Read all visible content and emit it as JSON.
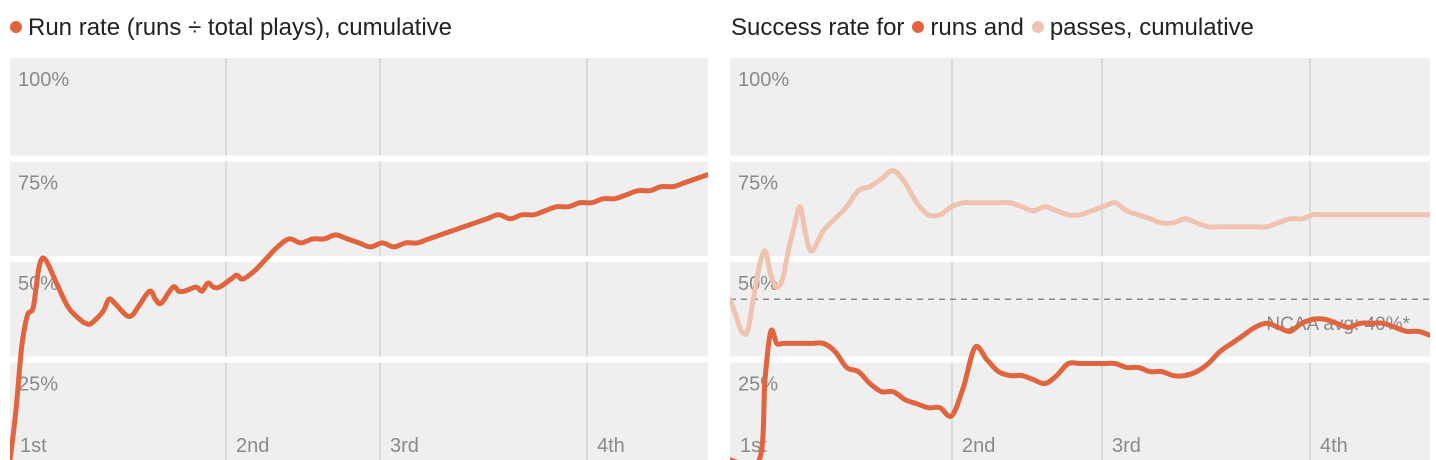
{
  "colors": {
    "runs": "#e0643d",
    "passes": "#f0c2b0",
    "plot_bg": "#efefef",
    "grid_v": "#d3d3d3",
    "band_gap": "#ffffff",
    "tick_text": "#8a8a8a",
    "avg_line": "#8a8a8a"
  },
  "chart_data": [
    {
      "type": "line",
      "title": "Run rate (runs ÷ total plays), cumulative",
      "xlabel": "",
      "ylabel": "",
      "x_tick_labels": [
        "1st",
        "2nd",
        "3rd",
        "4th"
      ],
      "y_tick_labels": [
        "100%",
        "75%",
        "50%",
        "25%"
      ],
      "y_ticks": [
        100,
        75,
        50,
        25
      ],
      "xlim": [
        0,
        60
      ],
      "ylim": [
        0,
        100
      ],
      "grid": true,
      "series": [
        {
          "key": "runs",
          "x": [
            0,
            0.5,
            1,
            1.5,
            2,
            2.5,
            3,
            4,
            5,
            6,
            6.5,
            7,
            8,
            8.5,
            9,
            10,
            10.5,
            11,
            12,
            12.5,
            13,
            14,
            14.5,
            15,
            16,
            16.5,
            17,
            17.5,
            18,
            19,
            19.5,
            20,
            21,
            22,
            23,
            24,
            25,
            26,
            27,
            28,
            29,
            30,
            31,
            32,
            33,
            34,
            35,
            36,
            37,
            38,
            39,
            40,
            41,
            42,
            43,
            44,
            45,
            46,
            47,
            48,
            49,
            50,
            51,
            52,
            53,
            54,
            55,
            56,
            57,
            58,
            59,
            60
          ],
          "values": [
            0,
            12,
            28,
            36,
            38,
            48,
            50,
            44,
            38,
            35,
            34,
            34,
            37,
            40,
            39,
            36,
            36,
            38,
            42,
            40,
            39,
            43,
            42,
            42,
            43,
            42,
            44,
            43,
            43,
            45,
            46,
            45,
            47,
            50,
            53,
            55,
            54,
            55,
            55,
            56,
            55,
            54,
            53,
            54,
            53,
            54,
            54,
            55,
            56,
            57,
            58,
            59,
            60,
            61,
            60,
            61,
            61,
            62,
            63,
            63,
            64,
            64,
            65,
            65,
            66,
            67,
            67,
            68,
            68,
            69,
            70,
            71
          ]
        }
      ]
    },
    {
      "type": "line",
      "title": "Success rate for runs and passes, cumulative",
      "title_parts": [
        "Success rate for",
        "runs and",
        "passes, cumulative"
      ],
      "xlabel": "",
      "ylabel": "",
      "x_tick_labels": [
        "1st",
        "2nd",
        "3rd",
        "4th"
      ],
      "y_tick_labels": [
        "100%",
        "75%",
        "50%",
        "25%"
      ],
      "y_ticks": [
        100,
        75,
        50,
        25
      ],
      "xlim": [
        0,
        60
      ],
      "ylim": [
        0,
        100
      ],
      "grid": true,
      "reference_line": {
        "value": 40,
        "label": "NCAA avg: 40%*"
      },
      "series": [
        {
          "key": "runs",
          "x": [
            0,
            2.5,
            3,
            3.5,
            4,
            4.5,
            5,
            6,
            7,
            8,
            9,
            10,
            11,
            12,
            13,
            14,
            15,
            16,
            17,
            18,
            19,
            20,
            21,
            22,
            23,
            24,
            25,
            26,
            27,
            28,
            29,
            30,
            31,
            32,
            33,
            34,
            35,
            36,
            37,
            38,
            39,
            40,
            41,
            42,
            43,
            44,
            45,
            46,
            47,
            48,
            49,
            50,
            51,
            52,
            53,
            54,
            55,
            56,
            57,
            58,
            59,
            60
          ],
          "values": [
            0,
            0,
            20,
            32,
            29,
            29,
            29,
            29,
            29,
            29,
            27,
            23,
            22,
            19,
            17,
            17,
            15,
            14,
            13,
            13,
            11,
            18,
            28,
            25,
            22,
            21,
            21,
            20,
            19,
            21,
            24,
            24,
            24,
            24,
            24,
            23,
            23,
            22,
            22,
            21,
            21,
            22,
            24,
            27,
            29,
            31,
            33,
            34,
            33,
            32,
            34,
            35,
            35,
            34,
            33,
            34,
            34,
            34,
            33,
            32,
            32,
            31
          ]
        },
        {
          "key": "passes",
          "x": [
            0,
            0.5,
            1,
            1.5,
            2,
            2.5,
            3,
            3.5,
            4,
            4.5,
            5,
            5.5,
            6,
            6.5,
            7,
            8,
            9,
            10,
            11,
            12,
            13,
            14,
            15,
            16,
            17,
            18,
            19,
            20,
            21,
            22,
            23,
            24,
            25,
            26,
            27,
            28,
            29,
            30,
            31,
            32,
            33,
            34,
            35,
            36,
            37,
            38,
            39,
            40,
            41,
            42,
            43,
            44,
            45,
            46,
            47,
            48,
            49,
            50,
            51,
            52,
            53,
            54,
            55,
            56,
            57,
            58,
            59,
            60
          ],
          "values": [
            40,
            36,
            32,
            32,
            40,
            48,
            52,
            46,
            43,
            45,
            52,
            58,
            63,
            56,
            52,
            57,
            60,
            63,
            67,
            68,
            70,
            72,
            69,
            64,
            61,
            61,
            63,
            64,
            64,
            64,
            64,
            64,
            63,
            62,
            63,
            62,
            61,
            61,
            62,
            63,
            64,
            62,
            61,
            60,
            59,
            59,
            60,
            59,
            58,
            58,
            58,
            58,
            58,
            58,
            59,
            60,
            60,
            61,
            61,
            61,
            61,
            61,
            61,
            61,
            61,
            61,
            61,
            61
          ]
        }
      ]
    }
  ]
}
